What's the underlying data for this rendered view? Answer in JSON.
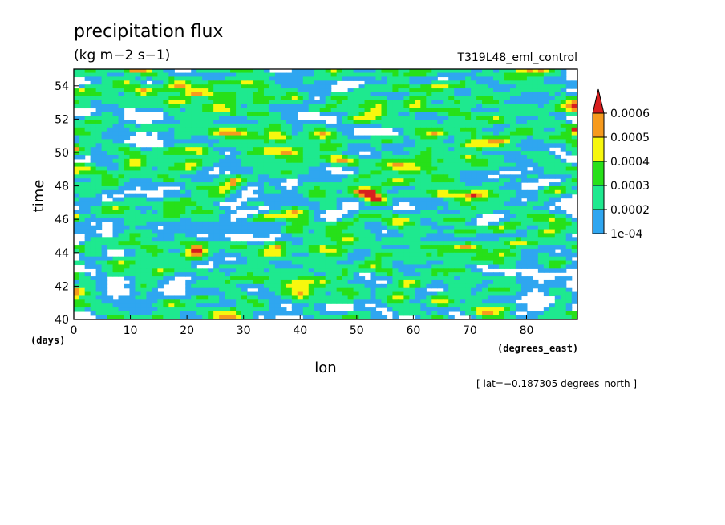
{
  "chart_data": {
    "type": "heatmap",
    "title": "precipitation flux",
    "units": "(kg m−2 s−1)",
    "experiment": "T319L48_eml_control",
    "xlabel": "lon",
    "ylabel": "time",
    "x_unit": "(degrees_east)",
    "y_unit": "(days)",
    "footnote": "[ lat=−0.187305 degrees_north ]",
    "xlim": [
      0,
      89
    ],
    "ylim": [
      40,
      55
    ],
    "x_ticks": [
      0,
      10,
      20,
      30,
      40,
      50,
      60,
      70,
      80
    ],
    "y_ticks": [
      40,
      42,
      44,
      46,
      48,
      50,
      52,
      54
    ],
    "colorbar": {
      "labels": [
        "1e-04",
        "0.0002",
        "0.0003",
        "0.0004",
        "0.0005",
        "0.0006"
      ],
      "colors": [
        "#2fa6f0",
        "#1ee98f",
        "#27e019",
        "#f7f70e",
        "#f69a1d",
        "#d81e1e"
      ],
      "extend": "max"
    },
    "levels": [
      0.0001,
      0.0002,
      0.0003,
      0.0004,
      0.0005,
      0.0006
    ]
  }
}
